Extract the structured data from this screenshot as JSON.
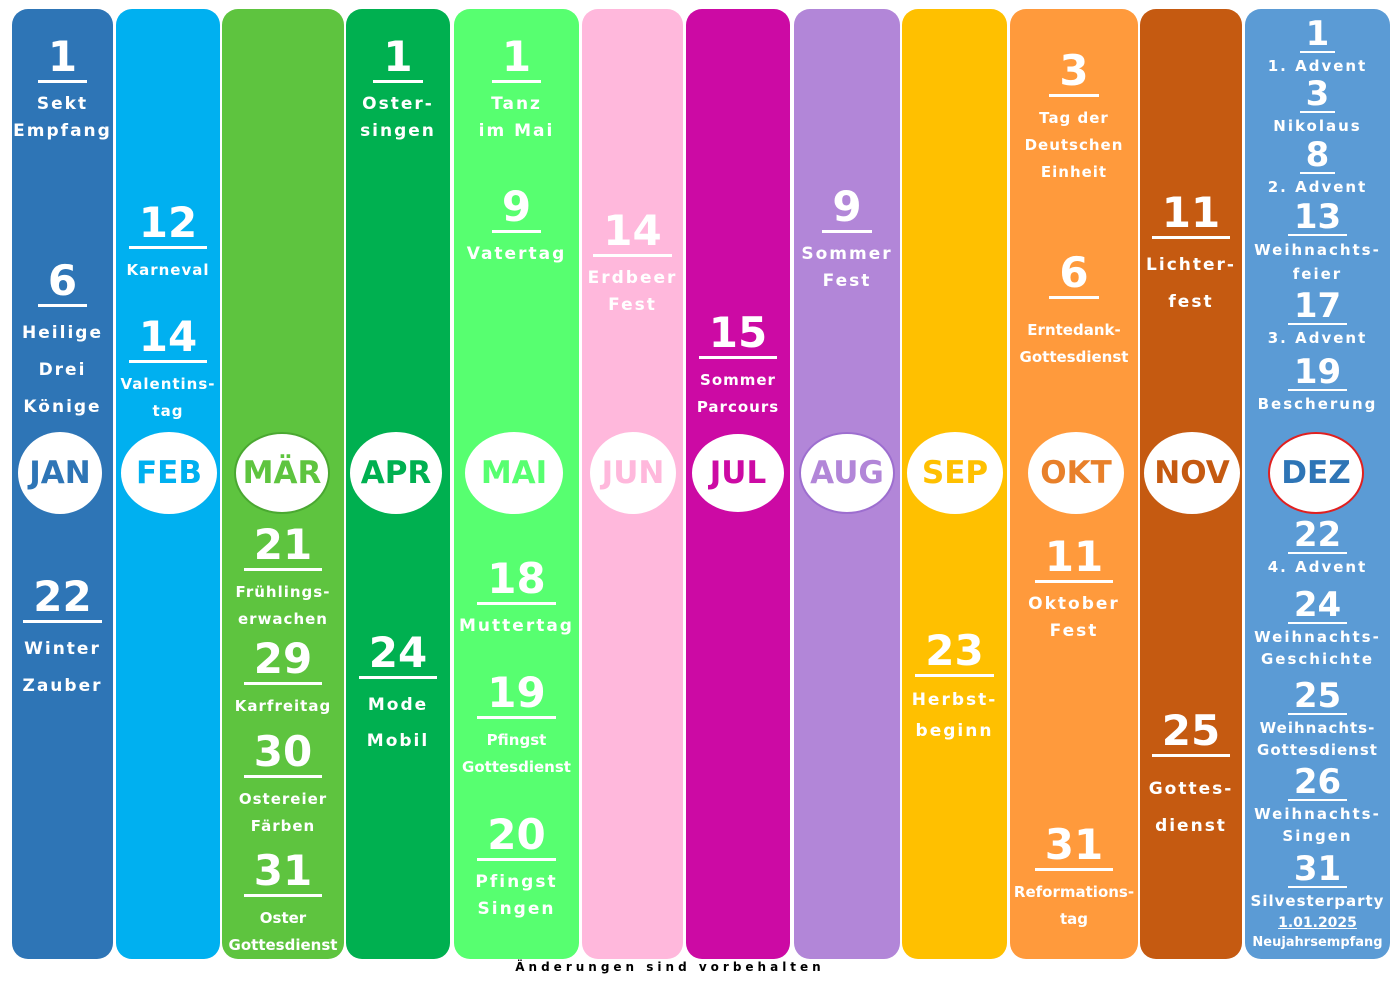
{
  "months": [
    {
      "label": "JAN",
      "color": "#2e75b6",
      "text_color": "#2e75b6"
    },
    {
      "label": "FEB",
      "color": "#00b0f0",
      "text_color": "#00b0f0"
    },
    {
      "label": "MÄR",
      "color": "#5ec43f",
      "text_color": "#5ec43f",
      "border": "#5ec43f"
    },
    {
      "label": "APR",
      "color": "#00b050",
      "text_color": "#00b050"
    },
    {
      "label": "MAI",
      "color": "#57ff70",
      "text_color": "#57ff70"
    },
    {
      "label": "JUN",
      "color": "#ffb8dc",
      "text_color": "#ffb8dc"
    },
    {
      "label": "JUL",
      "color": "#cc0aa4",
      "text_color": "#cc0aa4",
      "border": "#cc0aa4"
    },
    {
      "label": "AUG",
      "color": "#b286d8",
      "text_color": "#b286d8",
      "border": "#9d6ecf"
    },
    {
      "label": "SEP",
      "color": "#ffc000",
      "text_color": "#ffc000"
    },
    {
      "label": "OKT",
      "color": "#ff9a3c",
      "text_color": "#e8802a"
    },
    {
      "label": "NOV",
      "color": "#c55a11",
      "text_color": "#c55a11"
    },
    {
      "label": "DEZ",
      "color": "#5b9bd5",
      "text_color": "#2e75b6",
      "border": "#e02020"
    }
  ],
  "events": {
    "jan": [
      {
        "day": "1",
        "text": "Sekt\nEmpfang"
      },
      {
        "day": "6",
        "text": "Heilige\nDrei\nKönige"
      },
      {
        "day": "22",
        "text": "Winter\nZauber"
      }
    ],
    "feb": [
      {
        "day": "12",
        "text": "Karneval"
      },
      {
        "day": "14",
        "text": "Valentins-\ntag"
      }
    ],
    "mar": [
      {
        "day": "21",
        "text": "Frühlings-\nerwachen"
      },
      {
        "day": "29",
        "text": "Karfreitag"
      },
      {
        "day": "30",
        "text": "Ostereier\nFärben"
      },
      {
        "day": "31",
        "text": "Oster\nGottesdienst"
      }
    ],
    "apr": [
      {
        "day": "1",
        "text": "Oster-\nsingen"
      },
      {
        "day": "24",
        "text": "Mode\nMobil"
      }
    ],
    "may": [
      {
        "day": "1",
        "text": "Tanz\nim Mai"
      },
      {
        "day": "9",
        "text": "Vatertag"
      },
      {
        "day": "18",
        "text": "Muttertag"
      },
      {
        "day": "19",
        "text": "Pfingst\nGottesdienst"
      },
      {
        "day": "20",
        "text": "Pfingst\nSingen"
      }
    ],
    "jun": [
      {
        "day": "14",
        "text": "Erdbeer\nFest"
      }
    ],
    "jul": [
      {
        "day": "15",
        "text": "Sommer\nParcours"
      }
    ],
    "aug": [
      {
        "day": "9",
        "text": "Sommer\nFest"
      }
    ],
    "sep": [
      {
        "day": "23",
        "text": "Herbst-\nbeginn"
      }
    ],
    "oct": [
      {
        "day": "3",
        "text": "Tag der\nDeutschen\nEinheit"
      },
      {
        "day": "6",
        "text": "Erntedank-\nGottesdienst"
      },
      {
        "day": "11",
        "text": "Oktober\nFest"
      },
      {
        "day": "31",
        "text": "Reformations-\ntag"
      }
    ],
    "nov": [
      {
        "day": "11",
        "text": "Lichter-\nfest"
      },
      {
        "day": "25",
        "text": "Gottes-\ndienst"
      }
    ],
    "dec": [
      {
        "day": "1",
        "text": "1. Advent"
      },
      {
        "day": "3",
        "text": "Nikolaus"
      },
      {
        "day": "8",
        "text": "2. Advent"
      },
      {
        "day": "13",
        "text": "Weihnachts-\nfeier"
      },
      {
        "day": "17",
        "text": "3. Advent"
      },
      {
        "day": "19",
        "text": "Bescherung"
      },
      {
        "day": "22",
        "text": "4. Advent"
      },
      {
        "day": "24",
        "text": "Weihnachts-\nGeschichte"
      },
      {
        "day": "25",
        "text": "Weihnachts-\nGottesdienst"
      },
      {
        "day": "26",
        "text": "Weihnachts-\nSingen"
      },
      {
        "day": "31",
        "text": "Silvesterparty"
      }
    ]
  },
  "new_year": {
    "date": "1.01.2025",
    "text": "Neujahrsempfang"
  },
  "footer": "Änderungen sind vorbehalten"
}
